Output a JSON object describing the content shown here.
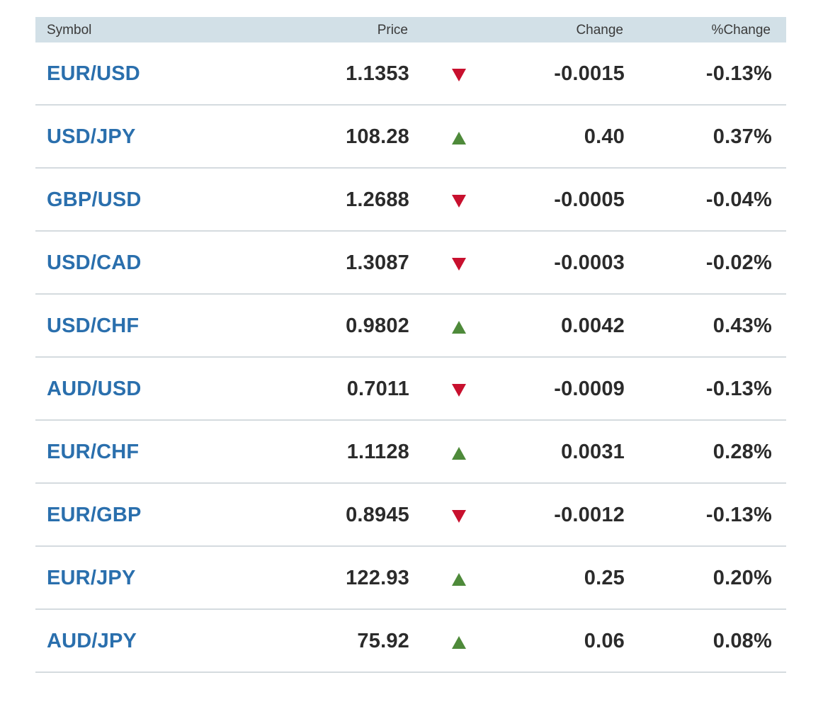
{
  "header": {
    "symbol": "Symbol",
    "price": "Price",
    "change": "Change",
    "pct_change": "%Change"
  },
  "colors": {
    "symbol_link": "#2a6fad",
    "header_bg": "#d2e0e7",
    "down_arrow": "#c8102e",
    "up_arrow": "#4e8a3a"
  },
  "rows": [
    {
      "symbol": "EUR/USD",
      "price": "1.1353",
      "direction": "down",
      "direction_icon": "triangle-down-icon",
      "change": "-0.0015",
      "pct_change": "-0.13%"
    },
    {
      "symbol": "USD/JPY",
      "price": "108.28",
      "direction": "up",
      "direction_icon": "triangle-up-icon",
      "change": "0.40",
      "pct_change": "0.37%"
    },
    {
      "symbol": "GBP/USD",
      "price": "1.2688",
      "direction": "down",
      "direction_icon": "triangle-down-icon",
      "change": "-0.0005",
      "pct_change": "-0.04%"
    },
    {
      "symbol": "USD/CAD",
      "price": "1.3087",
      "direction": "down",
      "direction_icon": "triangle-down-icon",
      "change": "-0.0003",
      "pct_change": "-0.02%"
    },
    {
      "symbol": "USD/CHF",
      "price": "0.9802",
      "direction": "up",
      "direction_icon": "triangle-up-icon",
      "change": "0.0042",
      "pct_change": "0.43%"
    },
    {
      "symbol": "AUD/USD",
      "price": "0.7011",
      "direction": "down",
      "direction_icon": "triangle-down-icon",
      "change": "-0.0009",
      "pct_change": "-0.13%"
    },
    {
      "symbol": "EUR/CHF",
      "price": "1.1128",
      "direction": "up",
      "direction_icon": "triangle-up-icon",
      "change": "0.0031",
      "pct_change": "0.28%"
    },
    {
      "symbol": "EUR/GBP",
      "price": "0.8945",
      "direction": "down",
      "direction_icon": "triangle-down-icon",
      "change": "-0.0012",
      "pct_change": "-0.13%"
    },
    {
      "symbol": "EUR/JPY",
      "price": "122.93",
      "direction": "up",
      "direction_icon": "triangle-up-icon",
      "change": "0.25",
      "pct_change": "0.20%"
    },
    {
      "symbol": "AUD/JPY",
      "price": "75.92",
      "direction": "up",
      "direction_icon": "triangle-up-icon",
      "change": "0.06",
      "pct_change": "0.08%"
    }
  ]
}
